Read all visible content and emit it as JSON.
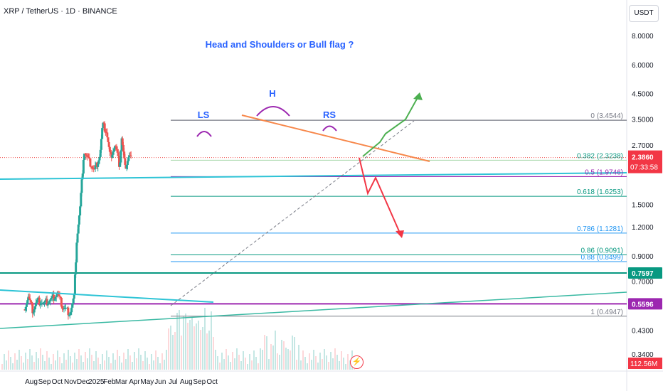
{
  "header": {
    "symbol": "XRP / TetherUS · 1D · BINANCE",
    "unit": "USDT"
  },
  "colors": {
    "up": "#26a69a",
    "down": "#ef5350",
    "cyan_line": "#2ec4d6",
    "teal_line": "#22ab94",
    "purple_line": "#9c27b0",
    "orange_line": "#f7874a",
    "annotation_blue": "#2962ff",
    "arc_purple": "#9c27b0",
    "green_arrow": "#4caf50",
    "red_arrow": "#f23645",
    "fib_gray": "#787b86",
    "fib_green": "#089981",
    "fib_blue": "#2196f3",
    "last_price_bg": "#f23645",
    "level_teal_bg": "#089981",
    "level_purple_bg": "#9c27b0",
    "volume_bg": "#f23645"
  },
  "chart_data": {
    "type": "candlestick",
    "title": "Head and Shoulders or Bull flag ?",
    "y_scale": "log",
    "y_ticks": [
      "8.0000",
      "6.0000",
      "4.5000",
      "3.5000",
      "2.7000",
      "1.5000",
      "1.2000",
      "0.9000",
      "0.7000",
      "0.4300",
      "0.3400"
    ],
    "x_ticks": [
      "Aug",
      "Sep",
      "Oct",
      "Nov",
      "Dec",
      "2025",
      "Feb",
      "Mar",
      "Apr",
      "May",
      "Jun",
      "Jul",
      "Aug",
      "Sep",
      "Oct"
    ],
    "price_series": [
      {
        "date": "2024-07-15",
        "value": 0.53
      },
      {
        "date": "2024-07-25",
        "value": 0.6
      },
      {
        "date": "2024-08-05",
        "value": 0.52
      },
      {
        "date": "2024-08-15",
        "value": 0.58
      },
      {
        "date": "2024-09-01",
        "value": 0.56
      },
      {
        "date": "2024-09-20",
        "value": 0.59
      },
      {
        "date": "2024-10-01",
        "value": 0.62
      },
      {
        "date": "2024-10-15",
        "value": 0.54
      },
      {
        "date": "2024-11-01",
        "value": 0.51
      },
      {
        "date": "2024-11-10",
        "value": 0.6
      },
      {
        "date": "2024-11-16",
        "value": 1.05
      },
      {
        "date": "2024-11-24",
        "value": 1.45
      },
      {
        "date": "2024-12-03",
        "value": 2.55
      },
      {
        "date": "2024-12-15",
        "value": 2.3
      },
      {
        "date": "2024-12-28",
        "value": 2.1
      },
      {
        "date": "2025-01-10",
        "value": 2.45
      },
      {
        "date": "2025-01-16",
        "value": 3.3
      },
      {
        "date": "2025-01-25",
        "value": 3.1
      },
      {
        "date": "2025-02-03",
        "value": 2.4
      },
      {
        "date": "2025-02-15",
        "value": 2.7
      },
      {
        "date": "2025-02-25",
        "value": 2.2
      },
      {
        "date": "2025-03-02",
        "value": 2.9
      },
      {
        "date": "2025-03-10",
        "value": 2.15
      },
      {
        "date": "2025-03-19",
        "value": 2.45
      },
      {
        "date": "2025-03-24",
        "value": 2.386
      }
    ],
    "fib_levels": [
      {
        "label": "0 (3.4544)",
        "value": 3.4544
      },
      {
        "label": "0.382 (2.3238)",
        "value": 2.3238
      },
      {
        "label": "0.5 (1.9746)",
        "value": 1.9746
      },
      {
        "label": "0.618 (1.6253)",
        "value": 1.6253
      },
      {
        "label": "0.786 (1.1281)",
        "value": 1.1281
      },
      {
        "label": "0.86 (0.9091)",
        "value": 0.9091
      },
      {
        "label": "0.88 (0.8499)",
        "value": 0.8499
      },
      {
        "label": "1 (0.4947)",
        "value": 0.4947
      }
    ],
    "annotations": {
      "left_shoulder": "LS",
      "head": "H",
      "right_shoulder": "RS"
    },
    "price_labels": {
      "last_price": "2.3860",
      "countdown": "07:33:58",
      "level_1": "0.7597",
      "level_2": "0.5596",
      "volume": "112.56M"
    }
  }
}
